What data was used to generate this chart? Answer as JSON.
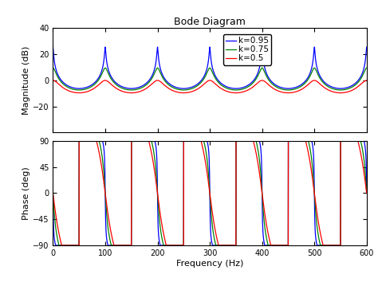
{
  "title": "Bode Diagram",
  "xlabel": "Frequency (Hz)",
  "ylabel_mag": "Magnitude (dB)",
  "ylabel_phase": "Phase (deg)",
  "freq_min": 0,
  "freq_max": 600,
  "mag_ylim": [
    -40,
    40
  ],
  "phase_ylim": [
    -90,
    90
  ],
  "k_values": [
    0.95,
    0.75,
    0.5
  ],
  "colors": [
    "#0000FF",
    "#008000",
    "#FF0000"
  ],
  "legend_labels": [
    "k=0.95",
    "k=0.75",
    "k=0.5"
  ],
  "fundamental_freq": 100,
  "title_fontsize": 9,
  "label_fontsize": 8,
  "tick_fontsize": 7,
  "legend_fontsize": 7.5,
  "background_color": "#ffffff",
  "axes_facecolor": "#ffffff"
}
